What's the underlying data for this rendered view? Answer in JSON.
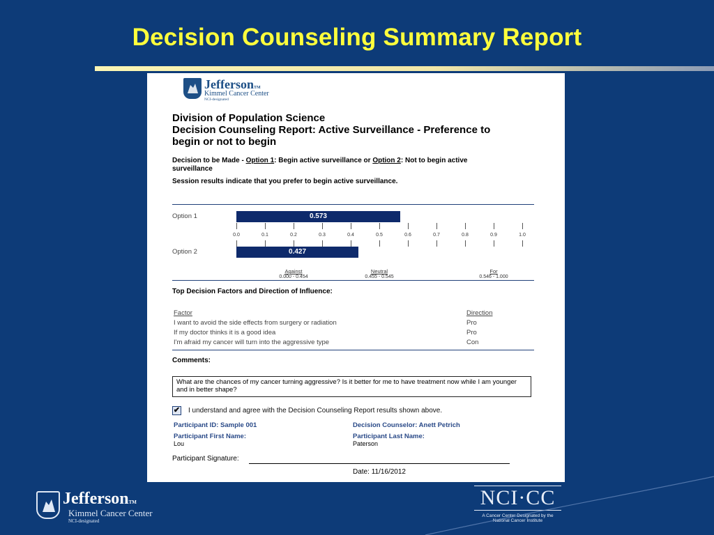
{
  "slide": {
    "title": "Decision Counseling Summary Report"
  },
  "doc": {
    "logo": {
      "name": "Jefferson",
      "tm": "TM",
      "line1": "Kimmel Cancer Center",
      "line2": "NCI-designated"
    },
    "division": "Division of Population Science",
    "report_title_1": "Decision Counseling Report: Active Surveillance - Preference to",
    "report_title_2": "begin or not to begin",
    "decision": {
      "prefix": "Decision to be Made - ",
      "option1_label": "Option 1",
      "option1_text": ": Begin active surveillance or ",
      "option2_label": "Option 2",
      "option2_text": ": Not to begin active",
      "line2": "surveillance"
    },
    "session_result": "Session results indicate that you prefer to begin active surveillance.",
    "chart": {
      "option1_label": "Option 1",
      "option2_label": "Option 2",
      "ticks": [
        "0.0",
        "0.1",
        "0.2",
        "0.3",
        "0.4",
        "0.5",
        "0.6",
        "0.7",
        "0.8",
        "0.9",
        "1.0"
      ],
      "zones": [
        {
          "name": "Against",
          "range": "0.000 - 0.454"
        },
        {
          "name": "Neutral",
          "range": "0.455 - 0.545"
        },
        {
          "name": "For",
          "range": "0.546 - 1.000"
        }
      ]
    },
    "factors": {
      "heading": "Top Decision Factors and Direction of Influence:",
      "col_factor": "Factor",
      "col_direction": "Direction",
      "rows": [
        {
          "factor": "I want to avoid the side effects from surgery or radiation",
          "direction": "Pro"
        },
        {
          "factor": "If my doctor thinks it is a good idea",
          "direction": "Pro"
        },
        {
          "factor": "I'm afraid my cancer will turn into the aggressive type",
          "direction": "Con"
        }
      ]
    },
    "comments": {
      "heading": "Comments:",
      "text": "What are the chances of my cancer turning aggressive? Is it better for me to have treatment now while I am younger and in better shape?"
    },
    "agree": {
      "checked": true,
      "text": "I understand and agree with the Decision Counseling Report results shown above."
    },
    "participant": {
      "id_label": "Participant ID:",
      "id_value": "Sample 001",
      "counselor_label": "Decision Counselor:",
      "counselor_value": "Anett Petrich",
      "first_label": "Participant First Name:",
      "first_value": "Lou",
      "last_label": "Participant Last Name:",
      "last_value": "Paterson",
      "signature_label": "Participant Signature:",
      "date_label": "Date:",
      "date_value": "11/16/2012"
    }
  },
  "chart_data": {
    "type": "bar",
    "categories": [
      "Option 1",
      "Option 2"
    ],
    "values": [
      0.573,
      0.427
    ],
    "xlim": [
      0,
      1
    ],
    "ticks": [
      0.0,
      0.1,
      0.2,
      0.3,
      0.4,
      0.5,
      0.6,
      0.7,
      0.8,
      0.9,
      1.0
    ],
    "color": "#0e2a6b"
  },
  "footer": {
    "logo": {
      "name": "Jefferson",
      "tm": "TM",
      "line1": "Kimmel Cancer Center",
      "line2": "NCI-designated"
    },
    "ncicc": {
      "mark": "NCI·CC",
      "caption1": "A Cancer Center Designated by the",
      "caption2": "National Cancer Institute"
    }
  },
  "colors": {
    "background": "#0d3b78",
    "title": "#ffff3c",
    "bar": "#0e2a6b",
    "label_blue": "#2a4a88"
  }
}
